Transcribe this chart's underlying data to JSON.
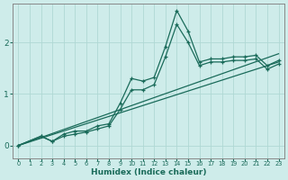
{
  "xlabel": "Humidex (Indice chaleur)",
  "background_color": "#ceecea",
  "grid_color": "#afd8d4",
  "line_color": "#1a6b5a",
  "x_ticks": [
    0,
    1,
    2,
    3,
    4,
    5,
    6,
    7,
    8,
    9,
    10,
    11,
    12,
    13,
    14,
    15,
    16,
    17,
    18,
    19,
    20,
    21,
    22,
    23
  ],
  "xlim": [
    -0.5,
    23.5
  ],
  "ylim": [
    -0.25,
    2.75
  ],
  "y_ticks": [
    0,
    1,
    2
  ],
  "ref_line1": {
    "x": [
      0,
      23
    ],
    "y": [
      0.0,
      1.62
    ]
  },
  "ref_line2": {
    "x": [
      0,
      23
    ],
    "y": [
      0.0,
      1.78
    ]
  },
  "series1": {
    "x": [
      0,
      2,
      3,
      4,
      5,
      6,
      7,
      8,
      9,
      10,
      11,
      12,
      13,
      14,
      15,
      16,
      17,
      18,
      19,
      20,
      21,
      22,
      23
    ],
    "y": [
      0.0,
      0.18,
      0.08,
      0.22,
      0.28,
      0.28,
      0.38,
      0.42,
      0.82,
      1.3,
      1.25,
      1.32,
      1.92,
      2.62,
      2.22,
      1.62,
      1.68,
      1.68,
      1.72,
      1.72,
      1.75,
      1.55,
      1.65
    ]
  },
  "series2": {
    "x": [
      0,
      2,
      3,
      4,
      5,
      6,
      7,
      8,
      9,
      10,
      11,
      12,
      13,
      14,
      15,
      16,
      17,
      18,
      19,
      20,
      21,
      22,
      23
    ],
    "y": [
      0.0,
      0.18,
      0.08,
      0.18,
      0.22,
      0.26,
      0.32,
      0.38,
      0.7,
      1.08,
      1.08,
      1.18,
      1.72,
      2.35,
      2.0,
      1.55,
      1.62,
      1.62,
      1.65,
      1.65,
      1.68,
      1.48,
      1.58
    ]
  }
}
